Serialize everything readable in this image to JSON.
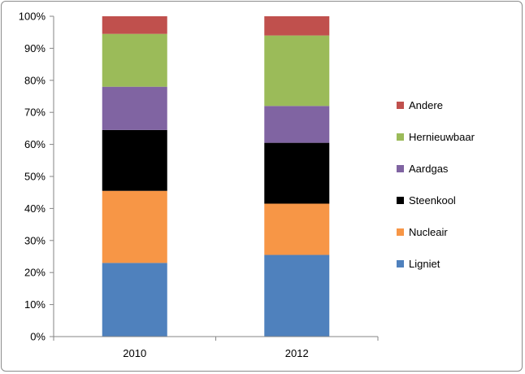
{
  "chart_data": {
    "type": "bar",
    "stacked": true,
    "percent_stacked": true,
    "categories": [
      "2010",
      "2012"
    ],
    "series": [
      {
        "name": "Ligniet",
        "color": "#4f81bd",
        "values": [
          23,
          25.5
        ]
      },
      {
        "name": "Nucleair",
        "color": "#f79646",
        "values": [
          22.5,
          16
        ]
      },
      {
        "name": "Steenkool",
        "color": "#000000",
        "values": [
          19,
          19
        ]
      },
      {
        "name": "Aardgas",
        "color": "#8064a2",
        "values": [
          13.5,
          11.5
        ]
      },
      {
        "name": "Hernieuwbaar",
        "color": "#9bbb59",
        "values": [
          16.5,
          22
        ]
      },
      {
        "name": "Andere",
        "color": "#c0504d",
        "values": [
          5.5,
          6
        ]
      }
    ],
    "ylim": [
      0,
      100
    ],
    "yticks": [
      "0%",
      "10%",
      "20%",
      "30%",
      "40%",
      "50%",
      "60%",
      "70%",
      "80%",
      "90%",
      "100%"
    ],
    "grid": false,
    "legend_position": "right",
    "title": "",
    "xlabel": "",
    "ylabel": ""
  }
}
